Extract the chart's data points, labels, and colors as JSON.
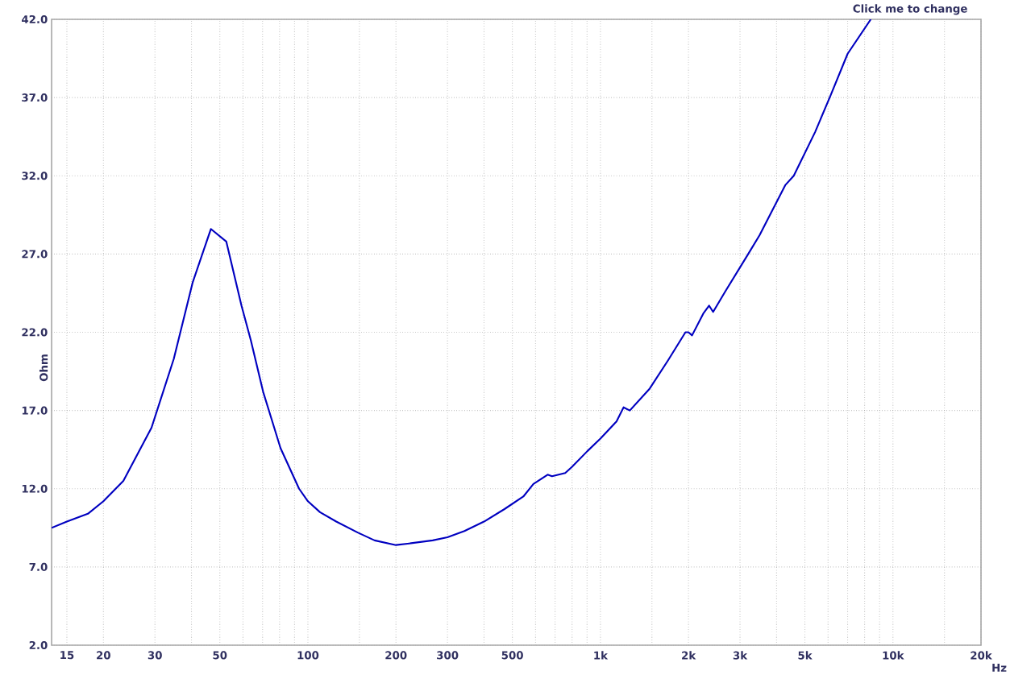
{
  "chart_data": {
    "type": "line",
    "ylabel": "Ohm",
    "annotations": [
      "Click me to change"
    ],
    "x": [
      13.3,
      15,
      17.7,
      20,
      23.4,
      29.2,
      34.8,
      40.4,
      46.6,
      52.6,
      59.3,
      63.8,
      70.3,
      80.6,
      93.3,
      100,
      110,
      125,
      148,
      169,
      200,
      222,
      267,
      300,
      343,
      400,
      470,
      545,
      590,
      660,
      683,
      758,
      800,
      902,
      1000,
      1135,
      1200,
      1260,
      1474,
      1702,
      1953,
      2000,
      2057,
      2248,
      2353,
      2428,
      2670,
      3200,
      3500,
      4283,
      4580,
      5420,
      6110,
      7000,
      8400
    ],
    "series": [
      {
        "color": "#0000c0",
        "values": [
          9.5,
          9.9,
          10.4,
          11.2,
          12.5,
          15.9,
          20.3,
          25.2,
          28.6,
          27.8,
          23.7,
          21.5,
          18.2,
          14.6,
          12.0,
          11.2,
          10.5,
          9.9,
          9.2,
          8.7,
          8.4,
          8.5,
          8.7,
          8.9,
          9.3,
          9.9,
          10.7,
          11.5,
          12.3,
          12.9,
          12.8,
          13.0,
          13.4,
          14.4,
          15.2,
          16.3,
          17.2,
          17.0,
          18.4,
          20.2,
          22.0,
          22.0,
          21.8,
          23.2,
          23.7,
          23.3,
          24.6,
          27.0,
          28.2,
          31.4,
          32.0,
          34.8,
          37.1,
          39.8,
          42.0
        ]
      }
    ],
    "log": "x",
    "grid": true,
    "marker": "none",
    "line_style": "solid",
    "xlim": [
      13.3,
      20000
    ],
    "ylim": [
      2,
      42
    ],
    "xticks": [
      15,
      20,
      30,
      {
        "value": 40,
        "label": null
      },
      50,
      {
        "value": 60,
        "label": null
      },
      {
        "value": 70,
        "label": null
      },
      {
        "value": 80,
        "label": null
      },
      {
        "value": 90,
        "label": null
      },
      100,
      {
        "value": 150,
        "label": null
      },
      200,
      300,
      {
        "value": 400,
        "label": null
      },
      500,
      {
        "value": 600,
        "label": null
      },
      {
        "value": 700,
        "label": null
      },
      {
        "value": 800,
        "label": null
      },
      {
        "value": 900,
        "label": null
      },
      {
        "value": 1000,
        "label": "1k"
      },
      {
        "value": 1500,
        "label": null
      },
      {
        "value": 2000,
        "label": "2k"
      },
      {
        "value": 3000,
        "label": "3k"
      },
      {
        "value": 4000,
        "label": null
      },
      {
        "value": 5000,
        "label": "5k"
      },
      {
        "value": 6000,
        "label": null
      },
      {
        "value": 7000,
        "label": null
      },
      {
        "value": 8000,
        "label": null
      },
      {
        "value": 9000,
        "label": null
      },
      {
        "value": 10000,
        "label": "10k"
      },
      {
        "value": 15000,
        "label": null
      },
      {
        "value": 20000,
        "label": "20k"
      }
    ],
    "xlabel": "Hz",
    "yticks": [
      {
        "value": 2,
        "label": "2.0"
      },
      {
        "value": 7,
        "label": "7.0"
      },
      {
        "value": 12,
        "label": "12.0"
      },
      {
        "value": 17,
        "label": "17.0"
      },
      {
        "value": 22,
        "label": "22.0"
      },
      {
        "value": 27,
        "label": "27.0"
      },
      {
        "value": 32,
        "label": "32.0"
      },
      {
        "value": 37,
        "label": "37.0"
      },
      {
        "value": 42,
        "label": "42.0"
      }
    ]
  }
}
